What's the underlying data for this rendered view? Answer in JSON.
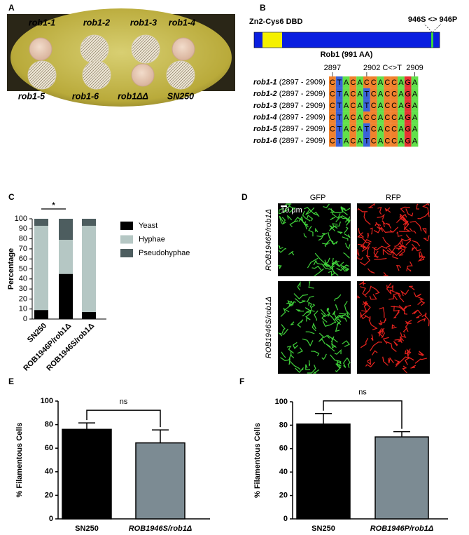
{
  "panel_labels": [
    "A",
    "B",
    "C",
    "D",
    "E",
    "F"
  ],
  "plate": {
    "top_labels": [
      "rob1-1",
      "rob1-2",
      "rob1-3",
      "rob1-4"
    ],
    "bottom_labels": [
      "rob1-5",
      "rob1-6",
      "rob1ΔΔ",
      "SN250"
    ]
  },
  "protein": {
    "domain": "Zn2-Cys6 DBD",
    "mutation": "946S <> 946P",
    "name": "Rob1 (991 AA)"
  },
  "alignment": {
    "positions": [
      "2897",
      "2902 C<>T",
      "2909"
    ],
    "rows": [
      {
        "strain": "rob1-1",
        "range": "(2897 - 2909)",
        "bases": [
          "C",
          "T",
          "A",
          "C",
          "A",
          "C",
          "C",
          "A",
          "C",
          "C",
          "A",
          "G",
          "A"
        ]
      },
      {
        "strain": "rob1-2",
        "range": "(2897 - 2909)",
        "bases": [
          "C",
          "T",
          "A",
          "C",
          "A",
          "T",
          "C",
          "A",
          "C",
          "C",
          "A",
          "G",
          "A"
        ]
      },
      {
        "strain": "rob1-3",
        "range": "(2897 - 2909)",
        "bases": [
          "C",
          "T",
          "A",
          "C",
          "A",
          "T",
          "C",
          "A",
          "C",
          "C",
          "A",
          "G",
          "A"
        ]
      },
      {
        "strain": "rob1-4",
        "range": "(2897 - 2909)",
        "bases": [
          "C",
          "T",
          "A",
          "C",
          "A",
          "C",
          "C",
          "A",
          "C",
          "C",
          "A",
          "G",
          "A"
        ]
      },
      {
        "strain": "rob1-5",
        "range": "(2897 - 2909)",
        "bases": [
          "C",
          "T",
          "A",
          "C",
          "A",
          "T",
          "C",
          "A",
          "C",
          "C",
          "A",
          "G",
          "A"
        ]
      },
      {
        "strain": "rob1-6",
        "range": "(2897 - 2909)",
        "bases": [
          "C",
          "T",
          "A",
          "C",
          "A",
          "T",
          "C",
          "A",
          "C",
          "C",
          "A",
          "G",
          "A"
        ]
      }
    ]
  },
  "microscopy": {
    "columns": [
      "GFP",
      "RFP"
    ],
    "scale": "10 μm",
    "rows": [
      "ROB1946P/rob1Δ",
      "ROB1946S/rob1Δ"
    ]
  },
  "chart_data": [
    {
      "type": "stacked_bar",
      "ylabel": "Percentage",
      "categories": [
        "SN250",
        "ROB1946P/rob1Δ",
        "ROB1946S/rob1Δ"
      ],
      "series": [
        {
          "name": "Yeast",
          "color": "#000000",
          "values": [
            9,
            45,
            7
          ]
        },
        {
          "name": "Hyphae",
          "color": "#b5c7c4",
          "values": [
            84,
            34,
            86
          ]
        },
        {
          "name": "Pseudohyphae",
          "color": "#4d5d5f",
          "values": [
            7,
            21,
            7
          ]
        }
      ],
      "ylim": [
        0,
        100
      ],
      "yticks": [
        0,
        10,
        20,
        30,
        40,
        50,
        60,
        70,
        80,
        90,
        100
      ],
      "annotation": "*"
    },
    {
      "type": "bar",
      "ylabel": "% Filamentous Cells",
      "categories": [
        "SN250",
        "ROB1946S/rob1Δ"
      ],
      "values": [
        76,
        64.5
      ],
      "errors": [
        5.5,
        11
      ],
      "colors": [
        "#000000",
        "#7c8b93"
      ],
      "ylim": [
        0,
        100
      ],
      "yticks": [
        0,
        20,
        40,
        60,
        80,
        100
      ],
      "annotation": "ns"
    },
    {
      "type": "bar",
      "ylabel": "% Filamentous Cells",
      "categories": [
        "SN250",
        "ROB1946P/rob1Δ"
      ],
      "values": [
        81,
        70
      ],
      "errors": [
        9,
        4.5
      ],
      "colors": [
        "#000000",
        "#7c8b93"
      ],
      "ylim": [
        0,
        100
      ],
      "yticks": [
        0,
        20,
        40,
        60,
        80,
        100
      ],
      "annotation": "ns"
    }
  ]
}
